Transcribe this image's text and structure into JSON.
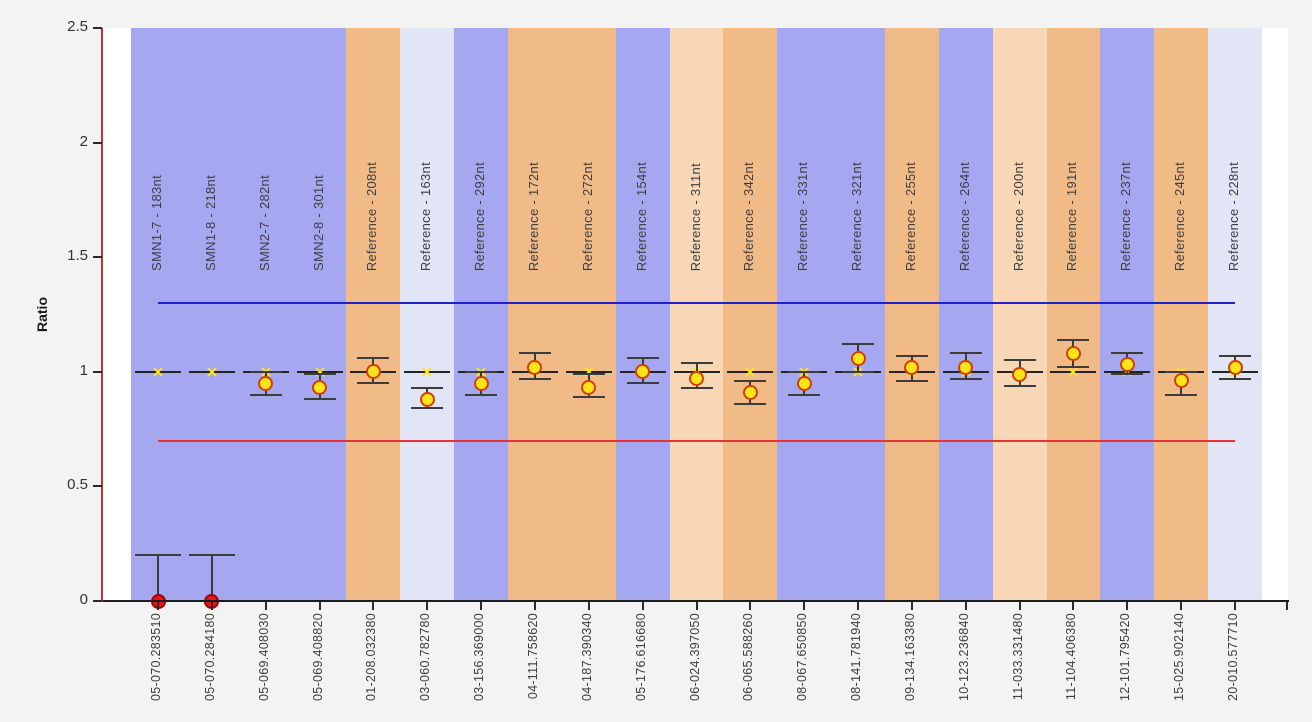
{
  "chart_data": {
    "type": "scatter",
    "title": "",
    "ylabel": "Ratio",
    "xlabel": "",
    "ylim": [
      0,
      2.5
    ],
    "y_ticks": [
      "0",
      "0.5",
      "1",
      "1.5",
      "2",
      "2.5"
    ],
    "grid": false,
    "legend": null,
    "thresholds": {
      "upper": {
        "value": 1.3,
        "color": "#2121cc"
      },
      "lower": {
        "value": 0.7,
        "color": "#e63333"
      }
    },
    "reference_value": 1.0,
    "band_colors": {
      "blue": "#a5a8f0",
      "orange": "#f1bb87",
      "lavender": "#e2e5f6",
      "peach": "#f8d7b6"
    },
    "marker_colors": {
      "yellow": {
        "fill": "#ffe41a",
        "stroke": "#d24000"
      },
      "red": {
        "fill": "#e61717",
        "stroke": "#a50000"
      }
    },
    "probes": [
      {
        "sample": "05-070.283510",
        "label": "SMN1-7 - 183nt",
        "band": "blue",
        "ratio": 0.0,
        "hi": 0.2,
        "lo": 0.0,
        "marker": "red"
      },
      {
        "sample": "05-070.284180",
        "label": "SMN1-8 - 218nt",
        "band": "blue",
        "ratio": 0.0,
        "hi": 0.2,
        "lo": 0.0,
        "marker": "red"
      },
      {
        "sample": "05-069.408030",
        "label": "SMN2-7 - 282nt",
        "band": "blue",
        "ratio": 0.95,
        "hi": 1.0,
        "lo": 0.9,
        "marker": "yellow"
      },
      {
        "sample": "05-069.408820",
        "label": "SMN2-8 - 301nt",
        "band": "blue",
        "ratio": 0.93,
        "hi": 0.99,
        "lo": 0.88,
        "marker": "yellow"
      },
      {
        "sample": "01-208.032380",
        "label": "Reference - 208nt",
        "band": "orange",
        "ratio": 1.0,
        "hi": 1.06,
        "lo": 0.95,
        "marker": "yellow"
      },
      {
        "sample": "03-060.782780",
        "label": "Reference - 163nt",
        "band": "lavender",
        "ratio": 0.88,
        "hi": 0.93,
        "lo": 0.84,
        "marker": "yellow"
      },
      {
        "sample": "03-156.369000",
        "label": "Reference - 292nt",
        "band": "blue",
        "ratio": 0.95,
        "hi": 1.0,
        "lo": 0.9,
        "marker": "yellow"
      },
      {
        "sample": "04-111.758620",
        "label": "Reference - 172nt",
        "band": "orange",
        "ratio": 1.02,
        "hi": 1.08,
        "lo": 0.97,
        "marker": "yellow"
      },
      {
        "sample": "04-187.390340",
        "label": "Reference - 272nt",
        "band": "orange",
        "ratio": 0.93,
        "hi": 0.99,
        "lo": 0.89,
        "marker": "yellow"
      },
      {
        "sample": "05-176.616680",
        "label": "Reference - 154nt",
        "band": "blue",
        "ratio": 1.0,
        "hi": 1.06,
        "lo": 0.95,
        "marker": "yellow"
      },
      {
        "sample": "06-024.397050",
        "label": "Reference - 311nt",
        "band": "peach",
        "ratio": 0.97,
        "hi": 1.04,
        "lo": 0.93,
        "marker": "yellow"
      },
      {
        "sample": "06-065.588260",
        "label": "Reference - 342nt",
        "band": "orange",
        "ratio": 0.91,
        "hi": 0.96,
        "lo": 0.86,
        "marker": "yellow"
      },
      {
        "sample": "08-067.650850",
        "label": "Reference - 331nt",
        "band": "blue",
        "ratio": 0.95,
        "hi": 1.0,
        "lo": 0.9,
        "marker": "yellow"
      },
      {
        "sample": "08-141.781940",
        "label": "Reference - 321nt",
        "band": "blue",
        "ratio": 1.06,
        "hi": 1.12,
        "lo": 1.0,
        "marker": "yellow"
      },
      {
        "sample": "09-134.163380",
        "label": "Reference - 255nt",
        "band": "orange",
        "ratio": 1.02,
        "hi": 1.07,
        "lo": 0.96,
        "marker": "yellow"
      },
      {
        "sample": "10-123.236840",
        "label": "Reference - 264nt",
        "band": "blue",
        "ratio": 1.02,
        "hi": 1.08,
        "lo": 0.97,
        "marker": "yellow"
      },
      {
        "sample": "11-033.331480",
        "label": "Reference - 200nt",
        "band": "peach",
        "ratio": 0.99,
        "hi": 1.05,
        "lo": 0.94,
        "marker": "yellow"
      },
      {
        "sample": "11-104.406380",
        "label": "Reference - 191nt",
        "band": "orange",
        "ratio": 1.08,
        "hi": 1.14,
        "lo": 1.02,
        "marker": "yellow"
      },
      {
        "sample": "12-101.795420",
        "label": "Reference - 237nt",
        "band": "blue",
        "ratio": 1.03,
        "hi": 1.08,
        "lo": 0.99,
        "marker": "yellow"
      },
      {
        "sample": "15-025.902140",
        "label": "Reference - 245nt",
        "band": "orange",
        "ratio": 0.96,
        "hi": 1.0,
        "lo": 0.9,
        "marker": "yellow"
      },
      {
        "sample": "20-010.577710",
        "label": "Reference - 228nt",
        "band": "lavender",
        "ratio": 1.02,
        "hi": 1.07,
        "lo": 0.97,
        "marker": "yellow"
      }
    ]
  }
}
